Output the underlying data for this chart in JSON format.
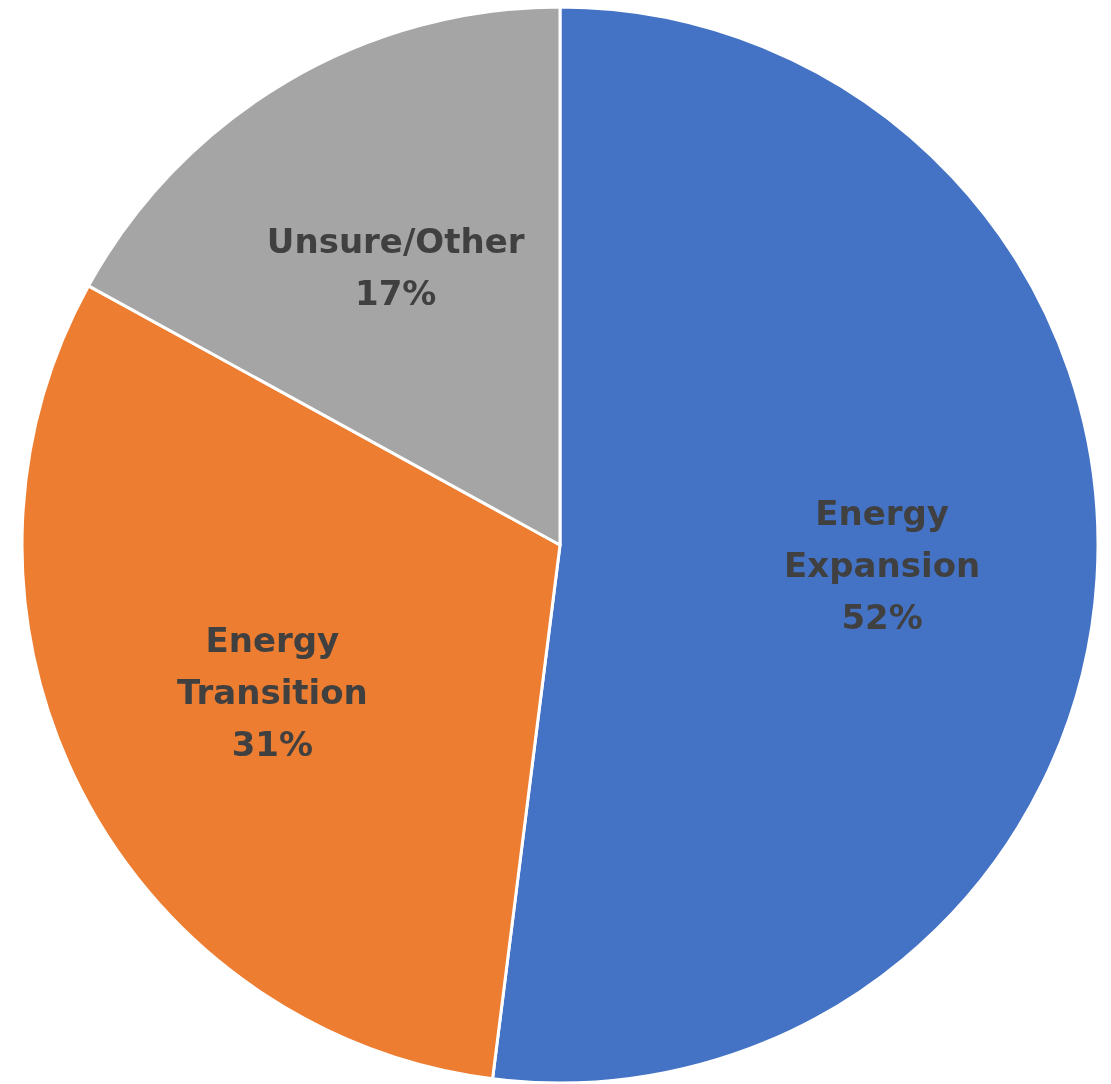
{
  "chart_data": {
    "type": "pie",
    "categories": [
      "Energy Expansion",
      "Energy Transition",
      "Unsure/Other"
    ],
    "values": [
      52,
      31,
      17
    ],
    "colors": [
      "#4472c4",
      "#ed7d31",
      "#a5a5a5"
    ],
    "value_labels": [
      "52%",
      "31%",
      "17%"
    ]
  }
}
